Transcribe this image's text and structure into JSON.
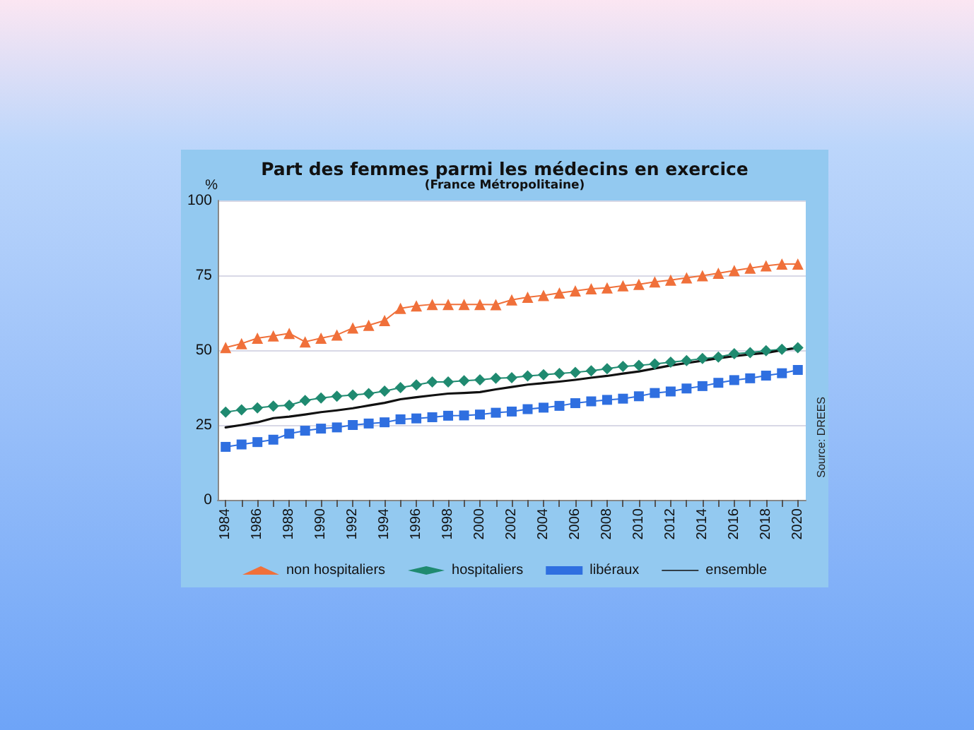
{
  "chart_data": {
    "type": "line",
    "title": "Part des femmes parmi les médecins en exercice",
    "subtitle": "(France Métropolitaine)",
    "ylabel": "%",
    "categories": [
      "1984",
      null,
      "1986",
      null,
      "1988",
      null,
      "1990",
      null,
      "1992",
      null,
      "1994",
      null,
      "1996",
      null,
      "1998",
      null,
      "2000",
      null,
      "2002",
      null,
      "2004",
      null,
      "2006",
      null,
      "2008",
      null,
      "2010",
      null,
      "2012",
      null,
      "2014",
      null,
      "2016",
      null,
      "2018",
      null,
      "2020"
    ],
    "series": [
      {
        "name": "non hospitaliers",
        "color": "#f0703a",
        "marker": "triangle",
        "values": [
          50.9,
          52.2,
          54,
          54.8,
          55.6,
          52.8,
          54,
          55.1,
          57.4,
          58.3,
          59.9,
          64,
          64.8,
          65.3,
          65.3,
          65.3,
          65.3,
          65.2,
          66.8,
          67.7,
          68.3,
          69.1,
          69.8,
          70.5,
          70.8,
          71.5,
          72,
          72.8,
          73.4,
          74.2,
          74.9,
          75.7,
          76.6,
          77.4,
          78.2,
          78.8,
          78.8
        ]
      },
      {
        "name": "hospitaliers",
        "color": "#1f8a70",
        "marker": "diamond",
        "values": [
          29.3,
          30.1,
          30.7,
          31.3,
          31.6,
          33.2,
          34,
          34.6,
          35,
          35.5,
          36.3,
          37.5,
          38.4,
          39.4,
          39.4,
          39.8,
          40.1,
          40.6,
          40.8,
          41.4,
          41.8,
          42.2,
          42.6,
          43.1,
          43.8,
          44.6,
          44.9,
          45.4,
          46,
          46.5,
          47.2,
          47.7,
          48.8,
          49.2,
          49.8,
          50.3,
          50.8
        ]
      },
      {
        "name": "libéraux",
        "color": "#2f6fe0",
        "marker": "square",
        "values": [
          17.7,
          18.5,
          19.3,
          20.1,
          22.1,
          23.1,
          23.8,
          24.2,
          25,
          25.5,
          25.9,
          26.9,
          27.2,
          27.6,
          28.1,
          28.2,
          28.5,
          29.1,
          29.5,
          30.3,
          30.8,
          31.4,
          32.3,
          32.9,
          33.4,
          33.8,
          34.6,
          35.7,
          36.2,
          37.2,
          38,
          39.1,
          40,
          40.6,
          41.5,
          42.3,
          43.4
        ]
      },
      {
        "name": "ensemble",
        "color": "#111111",
        "marker": "none",
        "values": [
          24.2,
          25,
          25.9,
          27.3,
          27.8,
          28.5,
          29.3,
          29.9,
          30.6,
          31.5,
          32.4,
          33.6,
          34.3,
          34.9,
          35.5,
          35.7,
          36,
          36.9,
          37.7,
          38.5,
          39,
          39.5,
          40.1,
          40.8,
          41.4,
          42.2,
          42.9,
          43.9,
          44.9,
          45.7,
          46.5,
          47.3,
          48,
          48.6,
          49.1,
          50,
          50.8
        ]
      }
    ],
    "ylim": [
      0,
      100
    ],
    "yticks": [
      0,
      25,
      50,
      75,
      100
    ],
    "grid": "y",
    "legend": "bottom",
    "annotations": [
      "Source: DREES"
    ]
  }
}
